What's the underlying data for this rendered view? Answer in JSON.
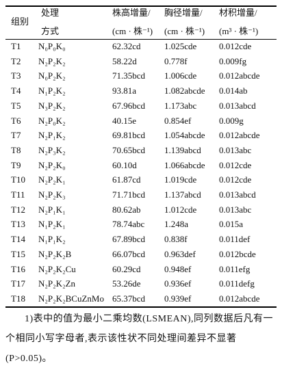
{
  "table": {
    "header": [
      [
        "组别"
      ],
      [
        "处理",
        "方式"
      ],
      [
        "株高增量/",
        "(cm · 株⁻¹)"
      ],
      [
        "胸径增量/",
        "(cm · 株⁻¹)"
      ],
      [
        "材积增量/",
        "(m³ · 株⁻¹)"
      ]
    ],
    "rows": [
      [
        "T1",
        "N₀P₀K₀",
        "62.32cd",
        "1.025cde",
        "0.012cde"
      ],
      [
        "T2",
        "N₂P₂K₂",
        "58.22d",
        "0.778f",
        "0.009fg"
      ],
      [
        "T3",
        "N₀P₂K₂",
        "71.35bcd",
        "1.006cde",
        "0.012abcde"
      ],
      [
        "T4",
        "N₁P₂K₂",
        "93.81a",
        "1.082abcde",
        "0.014ab"
      ],
      [
        "T5",
        "N₃P₂K₂",
        "67.96bcd",
        "1.173abc",
        "0.013abcd"
      ],
      [
        "T6",
        "N₂P₀K₂",
        "40.15e",
        "0.854ef",
        "0.009g"
      ],
      [
        "T7",
        "N₂P₁K₂",
        "69.81bcd",
        "1.054abcde",
        "0.012abcde"
      ],
      [
        "T8",
        "N₂P₃K₂",
        "70.65bcd",
        "1.139abcd",
        "0.013abc"
      ],
      [
        "T9",
        "N₂P₂K₀",
        "60.10d",
        "1.066abcde",
        "0.012cde"
      ],
      [
        "T10",
        "N₂P₂K₁",
        "61.87cd",
        "1.019cde",
        "0.012cde"
      ],
      [
        "T11",
        "N₂P₂K₃",
        "71.71bcd",
        "1.137abcd",
        "0.013abcd"
      ],
      [
        "T12",
        "N₂P₁K₁",
        "80.62ab",
        "1.012cde",
        "0.013abc"
      ],
      [
        "T13",
        "N₁P₂K₁",
        "78.74abc",
        "1.248a",
        "0.015a"
      ],
      [
        "T14",
        "N₁P₁K₂",
        "67.89bcd",
        "0.838f",
        "0.011def"
      ],
      [
        "T15",
        "N₂P₂K₂B",
        "66.07bcd",
        "0.963def",
        "0.012bcde"
      ],
      [
        "T16",
        "N₂P₂K₂Cu",
        "60.29cd",
        "0.948ef",
        "0.011efg"
      ],
      [
        "T17",
        "N₂P₂K₂Zn",
        "53.26de",
        "0.936ef",
        "0.011defg"
      ],
      [
        "T18",
        "N₂P₂K₂BCuZnMo",
        "65.37bcd",
        "0.939ef",
        "0.012abcde"
      ]
    ]
  },
  "footnote": "1)表中的值为最小二乘均数(LSMEAN),同列数据后凡有一个相同小写字母者,表示该性状不同处理间差异不显著(P>0.05)。"
}
